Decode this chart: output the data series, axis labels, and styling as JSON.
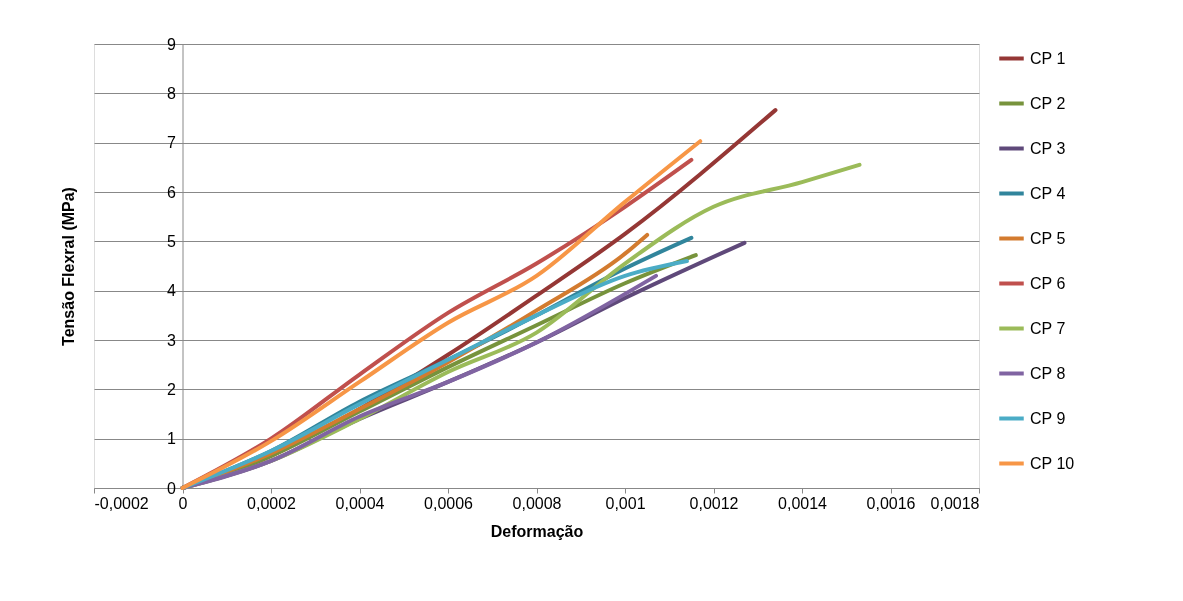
{
  "chart_data": {
    "type": "line",
    "xlabel": "Deformação",
    "ylabel": "Tensão Flexral (MPa)",
    "xlim": [
      -0.0002,
      0.0018
    ],
    "ylim": [
      0,
      9
    ],
    "xticks": [
      {
        "value": -0.0002,
        "label": "-0,0002"
      },
      {
        "value": 0,
        "label": "0"
      },
      {
        "value": 0.0002,
        "label": "0,0002"
      },
      {
        "value": 0.0004,
        "label": "0,0004"
      },
      {
        "value": 0.0006,
        "label": "0,0006"
      },
      {
        "value": 0.0008,
        "label": "0,0008"
      },
      {
        "value": 0.001,
        "label": "0,001"
      },
      {
        "value": 0.0012,
        "label": "0,0012"
      },
      {
        "value": 0.0014,
        "label": "0,0014"
      },
      {
        "value": 0.0016,
        "label": "0,0016"
      },
      {
        "value": 0.0018,
        "label": "0,0018"
      }
    ],
    "yticks": [
      0,
      1,
      2,
      3,
      4,
      5,
      6,
      7,
      8,
      9
    ],
    "grid": "y",
    "legend": "right",
    "marker": "none",
    "line_style": "solid",
    "series": [
      {
        "name": "CP 1",
        "color": "#953735",
        "x": [
          0,
          0.0002,
          0.0004,
          0.0006,
          0.0008,
          0.001,
          0.00134
        ],
        "values": [
          0,
          0.65,
          1.6,
          2.7,
          3.9,
          5.15,
          7.66
        ]
      },
      {
        "name": "CP 2",
        "color": "#77933c",
        "x": [
          0,
          0.0002,
          0.0004,
          0.0006,
          0.0008,
          0.001,
          0.00116
        ],
        "values": [
          0,
          0.65,
          1.55,
          2.45,
          3.3,
          4.15,
          4.72
        ]
      },
      {
        "name": "CP 3",
        "color": "#5f497a",
        "x": [
          0,
          0.0002,
          0.0004,
          0.0006,
          0.0008,
          0.001,
          0.00127
        ],
        "values": [
          0,
          0.55,
          1.4,
          2.15,
          2.95,
          3.85,
          4.97
        ]
      },
      {
        "name": "CP 4",
        "color": "#31859c",
        "x": [
          0,
          0.0002,
          0.0004,
          0.0006,
          0.0008,
          0.001,
          0.00115
        ],
        "values": [
          0,
          0.75,
          1.75,
          2.6,
          3.5,
          4.45,
          5.07
        ]
      },
      {
        "name": "CP 5",
        "color": "#d37b2f",
        "x": [
          0,
          0.0002,
          0.0004,
          0.0006,
          0.0008,
          0.001,
          0.00105
        ],
        "values": [
          0,
          0.7,
          1.6,
          2.55,
          3.6,
          4.75,
          5.13
        ]
      },
      {
        "name": "CP 6",
        "color": "#c0504d",
        "x": [
          0,
          0.0002,
          0.0004,
          0.0006,
          0.0008,
          0.001,
          0.00115
        ],
        "values": [
          0,
          1.0,
          2.3,
          3.55,
          4.55,
          5.7,
          6.65
        ]
      },
      {
        "name": "CP 7",
        "color": "#9bbb59",
        "x": [
          0,
          0.0002,
          0.0004,
          0.0006,
          0.0008,
          0.001,
          0.0012,
          0.0014,
          0.00153
        ],
        "values": [
          0,
          0.55,
          1.4,
          2.35,
          3.15,
          4.55,
          5.7,
          6.2,
          6.55
        ]
      },
      {
        "name": "CP 8",
        "color": "#8064a2",
        "x": [
          0,
          0.0002,
          0.0004,
          0.0006,
          0.0008,
          0.00107
        ],
        "values": [
          0,
          0.55,
          1.45,
          2.15,
          2.95,
          4.3
        ]
      },
      {
        "name": "CP 9",
        "color": "#4bacc6",
        "x": [
          0,
          0.0002,
          0.0004,
          0.0006,
          0.0008,
          0.001,
          0.00114
        ],
        "values": [
          0,
          0.75,
          1.7,
          2.6,
          3.5,
          4.3,
          4.6
        ]
      },
      {
        "name": "CP 10",
        "color": "#f79646",
        "x": [
          0,
          0.0002,
          0.0004,
          0.0006,
          0.0008,
          0.001,
          0.00117
        ],
        "values": [
          0,
          0.95,
          2.15,
          3.35,
          4.3,
          5.8,
          7.03
        ]
      }
    ]
  }
}
